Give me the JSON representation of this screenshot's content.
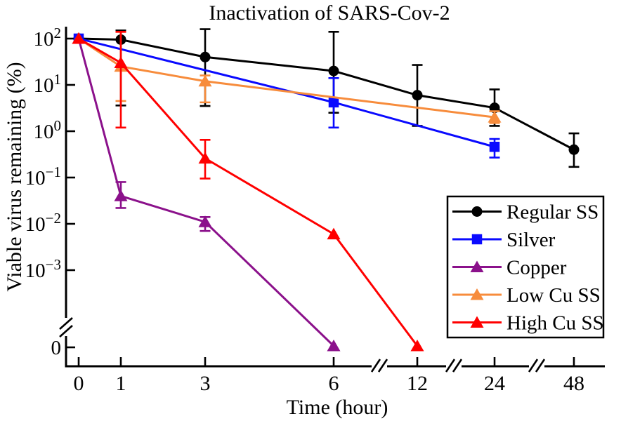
{
  "title": "Inactivation of SARS-Cov-2",
  "chart_data": {
    "type": "line",
    "title": "Inactivation of SARS-Cov-2",
    "xlabel": "Time (hour)",
    "ylabel": "Viable virus remaining (%)",
    "x_ticks": [
      0,
      1,
      3,
      6,
      12,
      24,
      48
    ],
    "x_axis_breaks_between": [
      [
        6,
        12
      ],
      [
        12,
        24
      ],
      [
        24,
        48
      ]
    ],
    "y_axis": {
      "scale": "log10",
      "tick_exponents": [
        2,
        1,
        0,
        -1,
        -2,
        -3
      ],
      "zero_label": "0",
      "break_above_zero": true,
      "units": "percent"
    },
    "legend_position": "lower-right",
    "grid": false,
    "series": [
      {
        "name": "Regular SS",
        "color": "#000000",
        "marker": "circle",
        "points": [
          {
            "x": 0,
            "y": 100
          },
          {
            "x": 1,
            "y": 95,
            "err_low": 3.6,
            "err_high": 150
          },
          {
            "x": 3,
            "y": 40,
            "err_low": 3.5,
            "err_high": 160
          },
          {
            "x": 6,
            "y": 20,
            "err_low": 2.5,
            "err_high": 140
          },
          {
            "x": 12,
            "y": 6,
            "err_low": 1.3,
            "err_high": 27
          },
          {
            "x": 24,
            "y": 3.2,
            "err_low": 1.3,
            "err_high": 8
          },
          {
            "x": 48,
            "y": 0.4,
            "err_low": 0.17,
            "err_high": 0.9
          }
        ]
      },
      {
        "name": "Silver",
        "color": "#0A0AFF",
        "marker": "square",
        "points": [
          {
            "x": 0,
            "y": 100
          },
          {
            "x": 6,
            "y": 4.2,
            "err_low": 1.2,
            "err_high": 14
          },
          {
            "x": 24,
            "y": 0.46,
            "err_low": 0.27,
            "err_high": 0.68
          }
        ]
      },
      {
        "name": "Copper",
        "color": "#8B118B",
        "marker": "triangle",
        "points": [
          {
            "x": 0,
            "y": 100
          },
          {
            "x": 1,
            "y": 0.04,
            "err_low": 0.022,
            "err_high": 0.08
          },
          {
            "x": 3,
            "y": 0.011,
            "err_low": 0.007,
            "err_high": 0.014
          },
          {
            "x": 6,
            "y": 0
          }
        ]
      },
      {
        "name": "Low Cu SS",
        "color": "#F78C3C",
        "marker": "triangle",
        "points": [
          {
            "x": 0,
            "y": 100
          },
          {
            "x": 1,
            "y": 25,
            "err_low": 4.5,
            "err_high": 140
          },
          {
            "x": 3,
            "y": 12,
            "err_low": 4.2,
            "err_high": 16
          },
          {
            "x": 24,
            "y": 2,
            "err_low": 1.5,
            "err_high": 2.7
          }
        ]
      },
      {
        "name": "High Cu SS",
        "color": "#FF0000",
        "marker": "triangle",
        "points": [
          {
            "x": 0,
            "y": 100
          },
          {
            "x": 1,
            "y": 30,
            "err_low": 1.2,
            "err_high": 140
          },
          {
            "x": 3,
            "y": 0.26,
            "err_low": 0.095,
            "err_high": 0.65
          },
          {
            "x": 6,
            "y": 0.006
          },
          {
            "x": 12,
            "y": 0
          }
        ]
      }
    ]
  }
}
